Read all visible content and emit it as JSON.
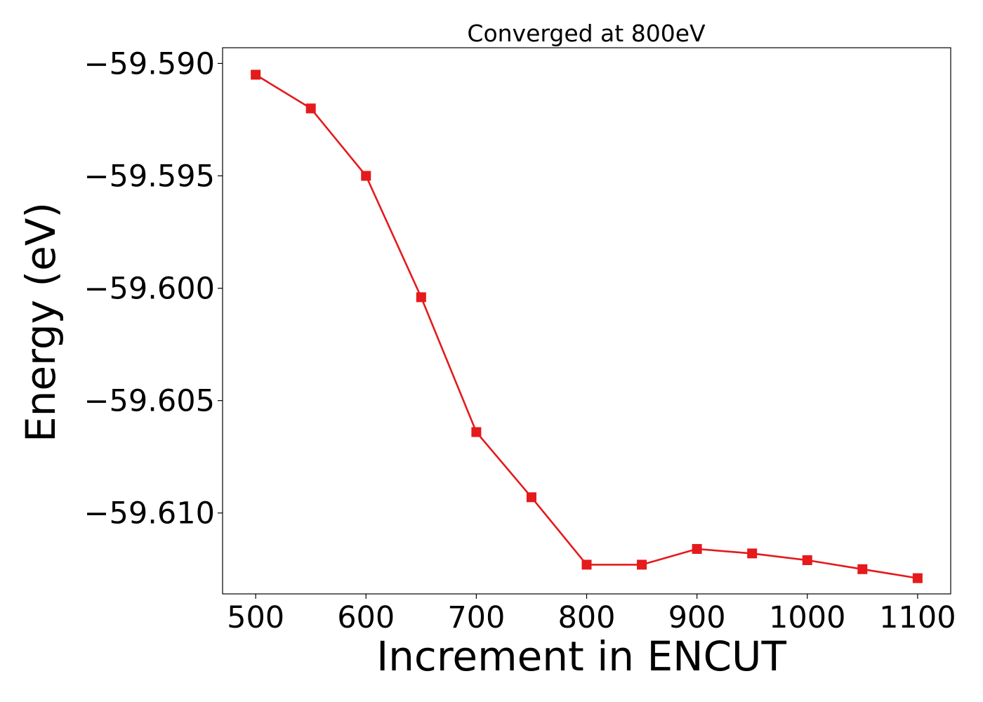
{
  "chart_data": {
    "type": "line",
    "title": "Converged at 800eV",
    "xlabel": "Increment in ENCUT",
    "ylabel": "Energy (eV)",
    "x": [
      500,
      550,
      600,
      650,
      700,
      750,
      800,
      850,
      900,
      950,
      1000,
      1050,
      1100
    ],
    "series": [
      {
        "values": [
          -59.5905,
          -59.592,
          -59.595,
          -59.6004,
          -59.6064,
          -59.6093,
          -59.6123,
          -59.6123,
          -59.6116,
          -59.6118,
          -59.6121,
          -59.6125,
          -59.6129
        ],
        "color": "#e41a1c",
        "marker": "square"
      }
    ],
    "xlim": [
      470,
      1130
    ],
    "ylim": [
      -59.6136,
      -59.5893
    ],
    "xticks": [
      500,
      600,
      700,
      800,
      900,
      1000,
      1100
    ],
    "xtick_labels": [
      "500",
      "600",
      "700",
      "800",
      "900",
      "1000",
      "1100"
    ],
    "yticks": [
      -59.59,
      -59.595,
      -59.6,
      -59.605,
      -59.61
    ],
    "ytick_labels": [
      "−59.590",
      "−59.595",
      "−59.600",
      "−59.605",
      "−59.610"
    ],
    "grid": false,
    "legend": false
  }
}
